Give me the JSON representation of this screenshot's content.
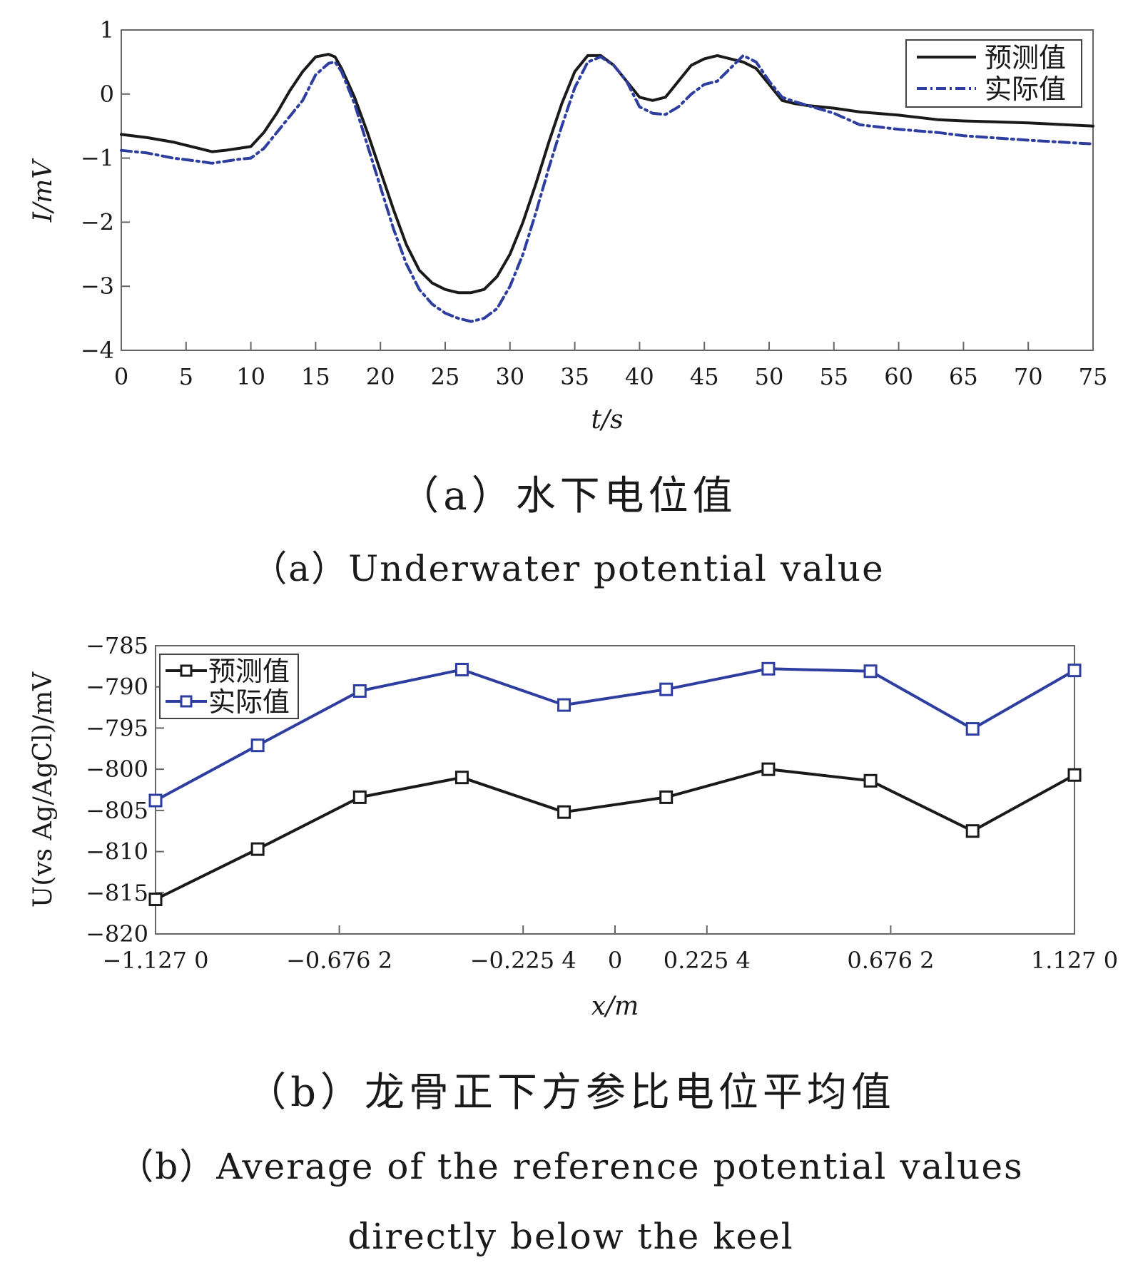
{
  "chart_data": [
    {
      "type": "line",
      "title": "",
      "xlabel": "t/s",
      "ylabel": "I/mV",
      "xlim": [
        0,
        75
      ],
      "ylim": [
        -4,
        1
      ],
      "xticks": [
        0,
        5,
        10,
        15,
        20,
        25,
        30,
        35,
        40,
        45,
        50,
        55,
        60,
        65,
        70,
        75
      ],
      "xtick_labels": [
        "0",
        "5",
        "10",
        "15",
        "20",
        "25",
        "30",
        "35",
        "40",
        "45",
        "50",
        "55",
        "60",
        "65",
        "70",
        "75"
      ],
      "yticks": [
        1,
        0,
        -1,
        -2,
        -3,
        -4
      ],
      "ytick_labels": [
        "1",
        "0",
        "−1",
        "−2",
        "−3",
        "−4"
      ],
      "grid": false,
      "legend_position": "top-right",
      "caption_zh": "（a）水下电位值",
      "caption_en": "（a）Underwater potential value",
      "series": [
        {
          "name": "预测值",
          "color": "#1a1a1a",
          "style": "solid",
          "x": [
            0,
            2,
            4,
            6,
            7,
            8,
            9,
            10,
            11,
            12,
            13,
            14,
            15,
            16,
            16.5,
            17,
            18,
            19,
            20,
            21,
            22,
            23,
            24,
            25,
            26,
            27,
            28,
            29,
            30,
            31,
            32,
            33,
            34,
            35,
            36,
            37,
            38,
            39,
            40,
            41,
            42,
            43,
            44,
            45,
            46,
            47,
            48,
            49,
            50,
            51,
            52,
            53,
            55,
            57,
            60,
            63,
            65,
            70,
            75
          ],
          "y": [
            -0.63,
            -0.68,
            -0.75,
            -0.85,
            -0.9,
            -0.88,
            -0.85,
            -0.82,
            -0.6,
            -0.3,
            0.05,
            0.35,
            0.58,
            0.62,
            0.58,
            0.4,
            -0.05,
            -0.6,
            -1.2,
            -1.8,
            -2.35,
            -2.75,
            -2.95,
            -3.05,
            -3.1,
            -3.1,
            -3.05,
            -2.85,
            -2.5,
            -2.0,
            -1.4,
            -0.75,
            -0.15,
            0.35,
            0.6,
            0.6,
            0.45,
            0.2,
            -0.05,
            -0.1,
            -0.05,
            0.2,
            0.45,
            0.55,
            0.6,
            0.55,
            0.5,
            0.4,
            0.15,
            -0.1,
            -0.15,
            -0.18,
            -0.22,
            -0.28,
            -0.33,
            -0.4,
            -0.42,
            -0.45,
            -0.5
          ]
        },
        {
          "name": "实际值",
          "color": "#2e3ea0",
          "style": "dash-dot",
          "x": [
            0,
            2,
            4,
            6,
            7,
            8,
            9,
            10,
            11,
            12,
            13,
            14,
            15,
            16,
            16.5,
            17,
            18,
            19,
            20,
            21,
            22,
            23,
            24,
            25,
            26,
            27,
            28,
            29,
            30,
            31,
            32,
            33,
            34,
            35,
            36,
            37,
            38,
            39,
            40,
            41,
            42,
            43,
            44,
            45,
            46,
            47,
            48,
            49,
            50,
            51,
            52,
            53,
            55,
            57,
            60,
            63,
            65,
            70,
            75
          ],
          "y": [
            -0.88,
            -0.92,
            -1.0,
            -1.05,
            -1.08,
            -1.05,
            -1.02,
            -1.0,
            -0.85,
            -0.6,
            -0.35,
            -0.1,
            0.3,
            0.48,
            0.5,
            0.35,
            -0.15,
            -0.8,
            -1.45,
            -2.1,
            -2.65,
            -3.05,
            -3.28,
            -3.42,
            -3.5,
            -3.55,
            -3.5,
            -3.35,
            -3.0,
            -2.5,
            -1.85,
            -1.15,
            -0.5,
            0.1,
            0.5,
            0.58,
            0.45,
            0.2,
            -0.2,
            -0.3,
            -0.32,
            -0.2,
            0.0,
            0.15,
            0.2,
            0.4,
            0.6,
            0.5,
            0.2,
            -0.05,
            -0.12,
            -0.18,
            -0.3,
            -0.48,
            -0.55,
            -0.6,
            -0.65,
            -0.72,
            -0.78
          ]
        }
      ]
    },
    {
      "type": "line",
      "title": "",
      "xlabel": "x/m",
      "ylabel": "U(vs Ag/AgCl)/mV",
      "xlim": [
        -1.127,
        1.127
      ],
      "ylim": [
        -820,
        -785
      ],
      "xticks": [
        -1.127,
        -0.6762,
        -0.2254,
        0,
        0.2254,
        0.6762,
        1.127
      ],
      "xtick_labels": [
        "−1.127 0",
        "−0.676 2",
        "−0.225 4",
        "0",
        "0.225 4",
        "0.676 2",
        "1.127 0"
      ],
      "yticks": [
        -785,
        -790,
        -795,
        -800,
        -805,
        -810,
        -815,
        -820
      ],
      "ytick_labels": [
        "−785",
        "−790",
        "−795",
        "−800",
        "−805",
        "−810",
        "−815",
        "−820"
      ],
      "grid": false,
      "legend_position": "top-left",
      "caption_zh": "（b）龙骨正下方参比电位平均值",
      "caption_en_line1": "（b）Average of the reference potential values",
      "caption_en_line2": "directly below the keel",
      "marker": "square",
      "series": [
        {
          "name": "预测值",
          "color": "#1a1a1a",
          "x": [
            -1.127,
            -0.8765,
            -0.626,
            -0.3755,
            -0.125,
            0.1255,
            0.3761,
            0.6266,
            0.8771,
            1.127
          ],
          "y": [
            -815.8,
            -809.7,
            -803.4,
            -801.0,
            -805.2,
            -803.4,
            -800.0,
            -801.4,
            -807.5,
            -800.7
          ]
        },
        {
          "name": "实际值",
          "color": "#2e3ea0",
          "x": [
            -1.127,
            -0.8765,
            -0.626,
            -0.3755,
            -0.125,
            0.1255,
            0.3761,
            0.6266,
            0.8771,
            1.127
          ],
          "y": [
            -803.8,
            -797.1,
            -790.5,
            -787.9,
            -792.2,
            -790.3,
            -787.8,
            -788.1,
            -795.1,
            -788.0
          ]
        }
      ]
    }
  ]
}
